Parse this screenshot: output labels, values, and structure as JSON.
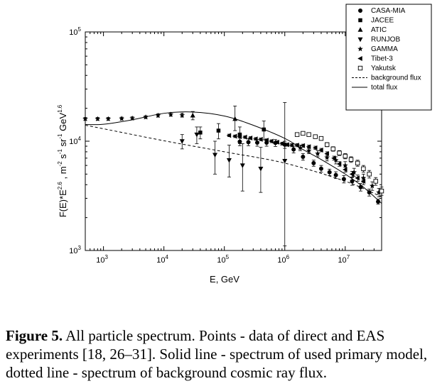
{
  "chart_data": {
    "type": "scatter",
    "xlabel": "E, GeV",
    "ylabel_main": "F(E)*E",
    "ylabel_sup1": "2.6",
    "ylabel_mid": " , m",
    "ylabel_sup2": "-2",
    "ylabel_s": "s",
    "ylabel_sup3": "-1",
    "ylabel_sr": "sr",
    "ylabel_sup4": "-1",
    "ylabel_gev": "GeV",
    "ylabel_sup5": "1.6",
    "x_scale": "log",
    "y_scale": "log",
    "xlim": [
      500,
      40000000
    ],
    "ylim": [
      1000,
      100000
    ],
    "x_ticks": [
      {
        "value": 1000,
        "base": "10",
        "exp": "3"
      },
      {
        "value": 10000,
        "base": "10",
        "exp": "4"
      },
      {
        "value": 100000,
        "base": "10",
        "exp": "5"
      },
      {
        "value": 1000000,
        "base": "10",
        "exp": "6"
      },
      {
        "value": 10000000,
        "base": "10",
        "exp": "7"
      }
    ],
    "y_ticks": [
      {
        "value": 1000,
        "base": "10",
        "exp": "3"
      },
      {
        "value": 10000,
        "base": "10",
        "exp": "4"
      },
      {
        "value": 100000,
        "base": "10",
        "exp": "5"
      }
    ],
    "legend_position": "top-right",
    "series": [
      {
        "name": "CASA-MIA",
        "marker": "circle",
        "points": [
          [
            180000,
            9900
          ],
          [
            250000,
            9800
          ],
          [
            350000,
            9700
          ],
          [
            500000,
            9700
          ],
          [
            700000,
            9650
          ],
          [
            1000000,
            9300
          ],
          [
            1400000,
            8400
          ],
          [
            2000000,
            7200
          ],
          [
            3000000,
            6300
          ],
          [
            4000000,
            5600
          ],
          [
            5500000,
            5200
          ],
          [
            7000000,
            4900
          ],
          [
            9500000,
            4500
          ],
          [
            13000000,
            4300
          ],
          [
            18000000,
            3800
          ],
          [
            25000000,
            3400
          ],
          [
            35000000,
            2800
          ]
        ],
        "err_lo": [
          800,
          700,
          700,
          700,
          700,
          700,
          600,
          500,
          400,
          400,
          350,
          350,
          350,
          350,
          300,
          250,
          150
        ],
        "err_hi": [
          800,
          700,
          700,
          700,
          700,
          700,
          600,
          500,
          400,
          400,
          350,
          350,
          350,
          350,
          300,
          250,
          150
        ]
      },
      {
        "name": "JACEE",
        "marker": "square",
        "points": [
          [
            40000,
            12000
          ],
          [
            80000,
            12500
          ],
          [
            180000,
            11500
          ],
          [
            450000,
            12800
          ]
        ],
        "err_lo": [
          1500,
          2000,
          2000,
          2500
        ],
        "err_hi": [
          1500,
          2000,
          2000,
          2500
        ]
      },
      {
        "name": "ATIC",
        "marker": "triangle-up",
        "points": [
          [
            30000,
            17200
          ],
          [
            150000,
            16000
          ]
        ],
        "err_lo": [
          1500,
          3500
        ],
        "err_hi": [
          1500,
          5000
        ]
      },
      {
        "name": "RUNJOB",
        "marker": "triangle-down",
        "points": [
          [
            20000,
            10000
          ],
          [
            35000,
            11500
          ],
          [
            70000,
            7500
          ],
          [
            120000,
            6700
          ],
          [
            200000,
            6000
          ],
          [
            400000,
            5600
          ],
          [
            1000000,
            6600
          ]
        ],
        "err_lo": [
          1500,
          2000,
          2500,
          2000,
          2500,
          2200,
          5500
        ],
        "err_hi": [
          1500,
          2000,
          2500,
          2500,
          3500,
          3200,
          16000
        ]
      },
      {
        "name": "GAMMA",
        "marker": "star",
        "points": [
          [
            500,
            16000
          ],
          [
            800,
            16000
          ],
          [
            1200,
            16000
          ],
          [
            2000,
            16100
          ],
          [
            3000,
            16200
          ],
          [
            5000,
            16600
          ],
          [
            8000,
            17200
          ],
          [
            13000,
            17600
          ],
          [
            20000,
            17300
          ],
          [
            1800000,
            8700
          ],
          [
            2500000,
            8200
          ],
          [
            3500000,
            7700
          ],
          [
            5000000,
            7100
          ],
          [
            7000000,
            6700
          ],
          [
            10000000,
            6000
          ],
          [
            14000000,
            5200
          ],
          [
            20000000,
            4600
          ],
          [
            28000000,
            3900
          ],
          [
            36000000,
            3400
          ]
        ],
        "err_lo": [
          500,
          500,
          500,
          500,
          500,
          500,
          600,
          700,
          700,
          500,
          500,
          500,
          500,
          500,
          500,
          450,
          400,
          350,
          300
        ],
        "err_hi": [
          500,
          500,
          500,
          500,
          500,
          500,
          600,
          700,
          700,
          500,
          500,
          500,
          500,
          500,
          500,
          450,
          400,
          350,
          300
        ]
      },
      {
        "name": "Tibet-3",
        "marker": "triangle-left",
        "points": [
          [
            120000,
            11300
          ],
          [
            150000,
            11100
          ],
          [
            180000,
            11000
          ],
          [
            220000,
            10900
          ],
          [
            270000,
            10700
          ],
          [
            330000,
            10500
          ],
          [
            400000,
            10400
          ],
          [
            500000,
            10200
          ],
          [
            600000,
            10000
          ],
          [
            750000,
            9800
          ],
          [
            900000,
            9500
          ],
          [
            1100000,
            9300
          ],
          [
            1300000,
            9200
          ],
          [
            1600000,
            9200
          ],
          [
            2000000,
            9100
          ],
          [
            2500000,
            8900
          ],
          [
            3200000,
            8700
          ],
          [
            4000000,
            8300
          ],
          [
            5000000,
            7700
          ],
          [
            6500000,
            7000
          ],
          [
            8000000,
            6200
          ],
          [
            10000000,
            5500
          ],
          [
            13000000,
            5000
          ],
          [
            16000000,
            4600
          ],
          [
            20000000,
            4300
          ]
        ],
        "err_lo": [
          300,
          300,
          300,
          300,
          300,
          300,
          300,
          300,
          300,
          300,
          300,
          300,
          300,
          300,
          300,
          300,
          300,
          300,
          300,
          300,
          300,
          300,
          300,
          300,
          300
        ],
        "err_hi": [
          300,
          300,
          300,
          300,
          300,
          300,
          300,
          300,
          300,
          300,
          300,
          300,
          300,
          300,
          300,
          300,
          300,
          300,
          300,
          300,
          300,
          300,
          300,
          300,
          300
        ]
      },
      {
        "name": "Yakutsk",
        "marker": "square-open",
        "points": [
          [
            1600000,
            11500
          ],
          [
            2000000,
            11800
          ],
          [
            2500000,
            11500
          ],
          [
            3200000,
            11000
          ],
          [
            4000000,
            10600
          ],
          [
            5000000,
            9300
          ],
          [
            6300000,
            8500
          ],
          [
            8000000,
            7800
          ],
          [
            10000000,
            7300
          ],
          [
            12500000,
            6800
          ],
          [
            16000000,
            6300
          ],
          [
            20000000,
            5600
          ],
          [
            25000000,
            5000
          ],
          [
            32000000,
            4300
          ],
          [
            40000000,
            3500
          ]
        ],
        "err_lo": [
          400,
          400,
          400,
          400,
          400,
          400,
          400,
          400,
          400,
          400,
          400,
          400,
          400,
          350,
          300
        ],
        "err_hi": [
          400,
          400,
          400,
          400,
          400,
          400,
          400,
          400,
          400,
          400,
          400,
          400,
          400,
          350,
          300
        ]
      }
    ],
    "lines": [
      {
        "name": "background flux",
        "style": "dashed",
        "points": [
          [
            500,
            14000
          ],
          [
            1000,
            13000
          ],
          [
            10000,
            10100
          ],
          [
            100000,
            8000
          ],
          [
            1000000,
            6300
          ],
          [
            10000000,
            4300
          ],
          [
            40000000,
            3100
          ]
        ]
      },
      {
        "name": "total flux",
        "style": "solid",
        "points": [
          [
            500,
            14200
          ],
          [
            1000,
            14300
          ],
          [
            3000,
            15700
          ],
          [
            10000,
            18000
          ],
          [
            30000,
            18500
          ],
          [
            100000,
            17000
          ],
          [
            300000,
            14000
          ],
          [
            1000000,
            10600
          ],
          [
            2000000,
            8400
          ],
          [
            4000000,
            6800
          ],
          [
            10000000,
            5000
          ],
          [
            20000000,
            3800
          ],
          [
            40000000,
            2700
          ]
        ]
      }
    ]
  },
  "caption": {
    "label": "Figure 5.",
    "text": " All particle spectrum. Points - data of direct and EAS experiments [18, 26–31]. Solid line - spectrum of used primary model, dotted line - spectrum of background cosmic ray flux."
  }
}
